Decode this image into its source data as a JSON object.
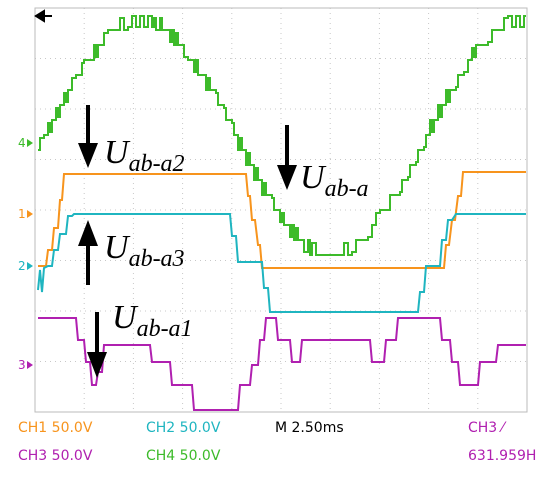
{
  "channel_markers": [
    "4",
    "1",
    "2",
    "3"
  ],
  "annotations": [
    {
      "symbol": "U",
      "subscript": "ab-a2"
    },
    {
      "symbol": "U",
      "subscript": "ab-a"
    },
    {
      "symbol": "U",
      "subscript": "ab-a3"
    },
    {
      "symbol": "U",
      "subscript": "ab-a1"
    }
  ],
  "status": {
    "row1": [
      "CH1 50.0V",
      "CH2 50.0V",
      "M 2.50ms",
      "CH3 ⁄"
    ],
    "row2": [
      "CH3 50.0V",
      "CH4 50.0V",
      "631.959H"
    ]
  }
}
